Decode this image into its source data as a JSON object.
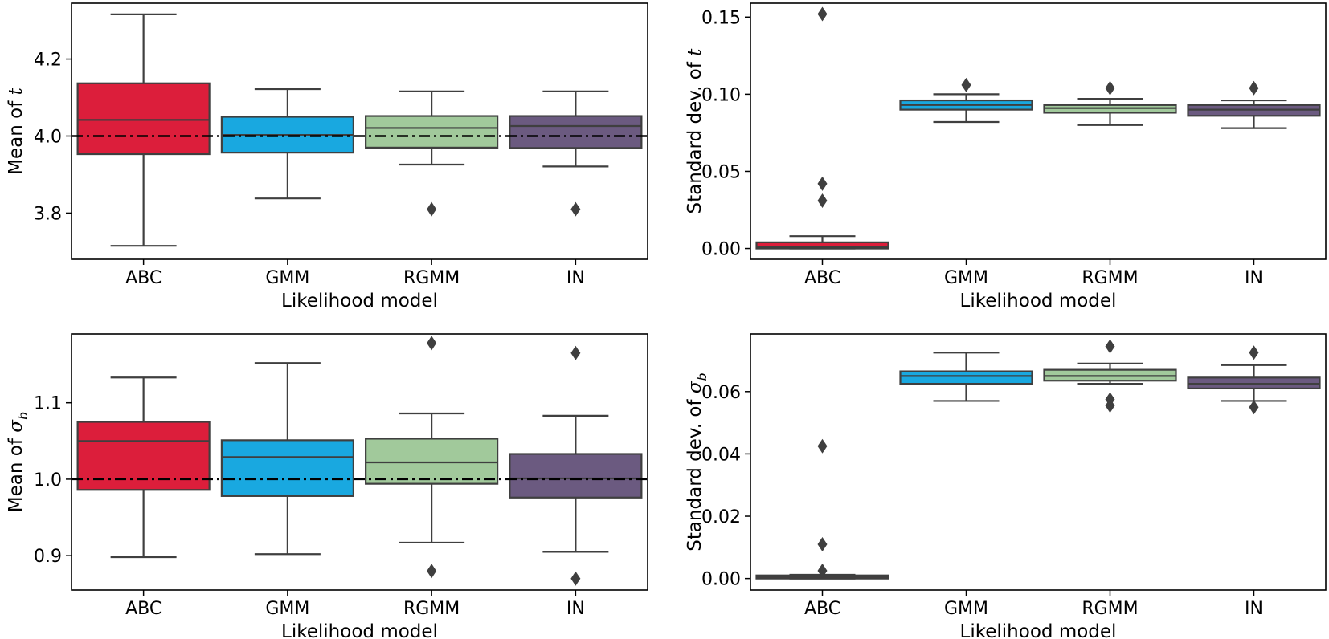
{
  "chart_data": [
    {
      "type": "box",
      "id": "mean-t",
      "xlabel": "Likelihood model",
      "ylabel_prefix": "Mean of ",
      "ylabel_symbol": "t",
      "ylabel_subscript": "",
      "categories": [
        "ABC",
        "GMM",
        "RGMM",
        "IN"
      ],
      "colors": [
        "#dc1e3b",
        "#19a8e0",
        "#a1c99b",
        "#6b5a80"
      ],
      "ylim": [
        3.68,
        4.345
      ],
      "yticks": [
        3.8,
        4.0,
        4.2
      ],
      "ytick_labels": [
        "3.8",
        "4.0",
        "4.2"
      ],
      "reference_line": 4.0,
      "boxes": [
        {
          "whislo": 3.715,
          "q1": 3.953,
          "med": 4.042,
          "q3": 4.137,
          "whishi": 4.316,
          "fliers": []
        },
        {
          "whislo": 3.838,
          "q1": 3.957,
          "med": 4.003,
          "q3": 4.05,
          "whishi": 4.122,
          "fliers": []
        },
        {
          "whislo": 3.926,
          "q1": 3.97,
          "med": 4.021,
          "q3": 4.052,
          "whishi": 4.116,
          "fliers": [
            3.81
          ]
        },
        {
          "whislo": 3.921,
          "q1": 3.969,
          "med": 4.026,
          "q3": 4.052,
          "whishi": 4.116,
          "fliers": [
            3.81
          ]
        }
      ]
    },
    {
      "type": "box",
      "id": "std-t",
      "xlabel": "Likelihood model",
      "ylabel_prefix": "Standard dev. of ",
      "ylabel_symbol": "t",
      "ylabel_subscript": "",
      "categories": [
        "ABC",
        "GMM",
        "RGMM",
        "IN"
      ],
      "colors": [
        "#dc1e3b",
        "#19a8e0",
        "#a1c99b",
        "#6b5a80"
      ],
      "ylim": [
        -0.007,
        0.159
      ],
      "yticks": [
        0.0,
        0.05,
        0.1,
        0.15
      ],
      "ytick_labels": [
        "0.00",
        "0.05",
        "0.10",
        "0.15"
      ],
      "reference_line": null,
      "boxes": [
        {
          "whislo": 0.0,
          "q1": 0.0,
          "med": 0.001,
          "q3": 0.004,
          "whishi": 0.008,
          "fliers": [
            0.031,
            0.042,
            0.152
          ]
        },
        {
          "whislo": 0.082,
          "q1": 0.09,
          "med": 0.093,
          "q3": 0.096,
          "whishi": 0.1,
          "fliers": [
            0.106
          ]
        },
        {
          "whislo": 0.08,
          "q1": 0.088,
          "med": 0.091,
          "q3": 0.093,
          "whishi": 0.097,
          "fliers": [
            0.104
          ]
        },
        {
          "whislo": 0.078,
          "q1": 0.086,
          "med": 0.09,
          "q3": 0.093,
          "whishi": 0.096,
          "fliers": [
            0.104
          ]
        }
      ]
    },
    {
      "type": "box",
      "id": "mean-sigma",
      "xlabel": "Likelihood model",
      "ylabel_prefix": "Mean of ",
      "ylabel_symbol": "σ",
      "ylabel_subscript": "b",
      "categories": [
        "ABC",
        "GMM",
        "RGMM",
        "IN"
      ],
      "colors": [
        "#dc1e3b",
        "#19a8e0",
        "#a1c99b",
        "#6b5a80"
      ],
      "ylim": [
        0.855,
        1.19
      ],
      "yticks": [
        0.9,
        1.0,
        1.1
      ],
      "ytick_labels": [
        "0.9",
        "1.0",
        "1.1"
      ],
      "reference_line": 1.0,
      "boxes": [
        {
          "whislo": 0.898,
          "q1": 0.986,
          "med": 1.05,
          "q3": 1.075,
          "whishi": 1.133,
          "fliers": []
        },
        {
          "whislo": 0.902,
          "q1": 0.978,
          "med": 1.029,
          "q3": 1.051,
          "whishi": 1.152,
          "fliers": []
        },
        {
          "whislo": 0.917,
          "q1": 0.994,
          "med": 1.022,
          "q3": 1.053,
          "whishi": 1.086,
          "fliers": [
            0.88,
            1.178
          ]
        },
        {
          "whislo": 0.905,
          "q1": 0.976,
          "med": 1.001,
          "q3": 1.033,
          "whishi": 1.083,
          "fliers": [
            0.87,
            1.165
          ]
        }
      ]
    },
    {
      "type": "box",
      "id": "std-sigma",
      "xlabel": "Likelihood model",
      "ylabel_prefix": "Standard dev. of ",
      "ylabel_symbol": "σ",
      "ylabel_subscript": "b",
      "categories": [
        "ABC",
        "GMM",
        "RGMM",
        "IN"
      ],
      "colors": [
        "#dc1e3b",
        "#19a8e0",
        "#a1c99b",
        "#6b5a80"
      ],
      "ylim": [
        -0.0037,
        0.0785
      ],
      "yticks": [
        0.0,
        0.02,
        0.04,
        0.06
      ],
      "ytick_labels": [
        "0.00",
        "0.02",
        "0.04",
        "0.06"
      ],
      "reference_line": null,
      "boxes": [
        {
          "whislo": 0.0,
          "q1": 0.0,
          "med": 0.0005,
          "q3": 0.001,
          "whishi": 0.0012,
          "fliers": [
            0.0025,
            0.011,
            0.0425
          ]
        },
        {
          "whislo": 0.057,
          "q1": 0.0625,
          "med": 0.065,
          "q3": 0.0665,
          "whishi": 0.0725,
          "fliers": []
        },
        {
          "whislo": 0.0625,
          "q1": 0.0635,
          "med": 0.065,
          "q3": 0.067,
          "whishi": 0.069,
          "fliers": [
            0.0555,
            0.0575,
            0.0745
          ]
        },
        {
          "whislo": 0.057,
          "q1": 0.061,
          "med": 0.0625,
          "q3": 0.0645,
          "whishi": 0.0685,
          "fliers": [
            0.055,
            0.0725
          ]
        }
      ]
    }
  ]
}
